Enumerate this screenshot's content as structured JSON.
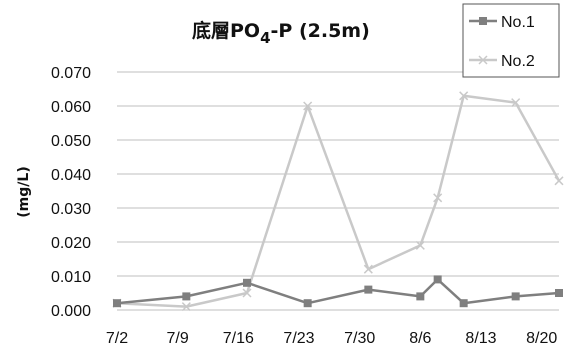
{
  "chart_data": {
    "type": "line",
    "title": {
      "main": "底層PO",
      "sub": "4",
      "tail": "-P  (2.5m)"
    },
    "xlabel": "",
    "ylabel": "(mg/L)",
    "ylim": [
      0,
      0.07
    ],
    "yticks": [
      "0.000",
      "0.010",
      "0.020",
      "0.030",
      "0.040",
      "0.050",
      "0.060",
      "0.070"
    ],
    "xlim": [
      "7/2",
      "8/22"
    ],
    "xticks": [
      "7/2",
      "7/9",
      "7/16",
      "7/23",
      "7/30",
      "8/6",
      "8/13",
      "8/20"
    ],
    "grid": true,
    "legend_position": "top-right",
    "series": [
      {
        "name": "No.1",
        "color": "#7f7f7f",
        "marker": "square",
        "points": [
          [
            "7/2",
            0.002
          ],
          [
            "7/10",
            0.004
          ],
          [
            "7/17",
            0.008
          ],
          [
            "7/24",
            0.002
          ],
          [
            "7/31",
            0.006
          ],
          [
            "8/6",
            0.004
          ],
          [
            "8/8",
            0.009
          ],
          [
            "8/11",
            0.002
          ],
          [
            "8/17",
            0.004
          ],
          [
            "8/22",
            0.005
          ]
        ]
      },
      {
        "name": "No.2",
        "color": "#c9c9c9",
        "marker": "x",
        "points": [
          [
            "7/2",
            0.002
          ],
          [
            "7/10",
            0.001
          ],
          [
            "7/17",
            0.005
          ],
          [
            "7/24",
            0.06
          ],
          [
            "7/31",
            0.012
          ],
          [
            "8/6",
            0.019
          ],
          [
            "8/8",
            0.033
          ],
          [
            "8/11",
            0.063
          ],
          [
            "8/17",
            0.061
          ],
          [
            "8/22",
            0.038
          ]
        ]
      }
    ]
  }
}
